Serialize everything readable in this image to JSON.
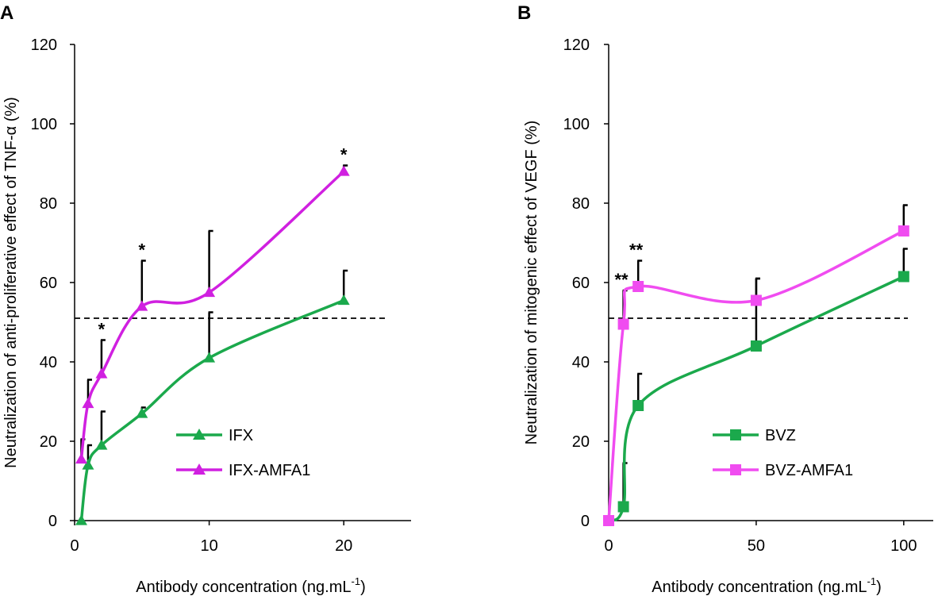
{
  "colors": {
    "green": "#1ba94c",
    "magenta": "#d020e0",
    "pink": "#f04cf0",
    "axis": "#000000"
  },
  "chart_data": [
    {
      "panel": "A",
      "type": "line",
      "xlabel": "Antibody concentration (ng.mL",
      "xlabel_sup": "-1",
      "xlabel_end": ")",
      "ylabel": "Neutralization of anti-proliferative effect of TNF-α  (%)",
      "xlim": [
        0,
        25
      ],
      "ylim": [
        0,
        120
      ],
      "xticks": [
        0,
        10,
        20
      ],
      "yticks": [
        0,
        20,
        40,
        60,
        80,
        100,
        120
      ],
      "reference_line": 51,
      "marker": "triangle",
      "legend_position": "lower-right",
      "series": [
        {
          "name": "IFX",
          "color": "#1ba94c",
          "x": [
            0.5,
            1,
            2,
            5,
            10,
            20
          ],
          "y": [
            0,
            14,
            19,
            27,
            41,
            55.5
          ],
          "error": [
            0,
            5,
            8.5,
            1.5,
            11.5,
            7.5
          ]
        },
        {
          "name": "IFX-AMFA1",
          "color": "#d020e0",
          "x": [
            0.5,
            1,
            2,
            5,
            10,
            20
          ],
          "y": [
            15.5,
            29.5,
            37,
            54,
            57.5,
            88
          ],
          "error": [
            5,
            6,
            8.5,
            11.5,
            15.5,
            1.5
          ]
        }
      ],
      "significance": [
        {
          "x": 2,
          "label": "*"
        },
        {
          "x": 5,
          "label": "*"
        },
        {
          "x": 20,
          "label": "*"
        }
      ]
    },
    {
      "panel": "B",
      "type": "line",
      "xlabel": "Antibody concentration (ng.mL",
      "xlabel_sup": "-1",
      "xlabel_end": ")",
      "ylabel": "Neutralization of  mitogenic effect of VEGF (%)",
      "xlim": [
        0,
        110
      ],
      "ylim": [
        0,
        120
      ],
      "xticks": [
        0,
        50,
        100
      ],
      "yticks": [
        0,
        20,
        40,
        60,
        80,
        100,
        120
      ],
      "reference_line": 51,
      "marker": "square",
      "legend_position": "lower-right",
      "series": [
        {
          "name": "BVZ",
          "color": "#1ba94c",
          "x": [
            0,
            5,
            10,
            50,
            100
          ],
          "y": [
            0,
            3.5,
            29,
            44,
            61.5
          ],
          "error": [
            0,
            11,
            8,
            17,
            7
          ]
        },
        {
          "name": "BVZ-AMFA1",
          "color": "#f04cf0",
          "x": [
            0,
            5,
            10,
            50,
            100
          ],
          "y": [
            0,
            49.5,
            59,
            55.5,
            73
          ],
          "error": [
            0,
            8.5,
            6.5,
            5.5,
            6.5
          ]
        }
      ],
      "significance": [
        {
          "x": 5,
          "label": "**"
        },
        {
          "x": 10,
          "label": "**"
        }
      ]
    }
  ]
}
